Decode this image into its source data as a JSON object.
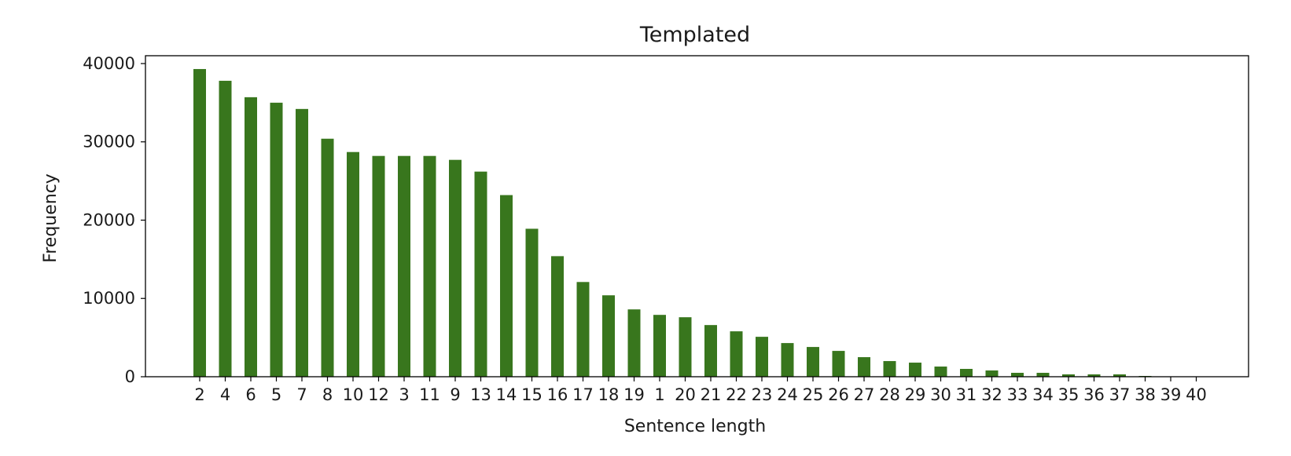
{
  "chart_data": {
    "type": "bar",
    "title": "Templated",
    "xlabel": "Sentence length",
    "ylabel": "Frequency",
    "bar_color": "#38761d",
    "ylim": [
      0,
      41000
    ],
    "yticks": [
      0,
      10000,
      20000,
      30000,
      40000
    ],
    "ytick_labels": [
      "0",
      "10000",
      "20000",
      "30000",
      "40000"
    ],
    "grid": false,
    "categories": [
      "2",
      "4",
      "6",
      "5",
      "7",
      "8",
      "10",
      "12",
      "3",
      "11",
      "9",
      "13",
      "14",
      "15",
      "16",
      "17",
      "18",
      "19",
      "1",
      "20",
      "21",
      "22",
      "23",
      "24",
      "25",
      "26",
      "27",
      "28",
      "29",
      "30",
      "31",
      "32",
      "33",
      "34",
      "35",
      "36",
      "37",
      "38",
      "39",
      "40"
    ],
    "values": [
      39300,
      37800,
      35700,
      35000,
      34200,
      30400,
      28700,
      28200,
      28200,
      28200,
      27700,
      26200,
      23200,
      18900,
      15400,
      12100,
      10400,
      8600,
      7900,
      7600,
      6600,
      5800,
      5100,
      4300,
      3800,
      3300,
      2500,
      2000,
      1800,
      1300,
      1000,
      800,
      500,
      500,
      300,
      300,
      300,
      100,
      50,
      30
    ]
  }
}
